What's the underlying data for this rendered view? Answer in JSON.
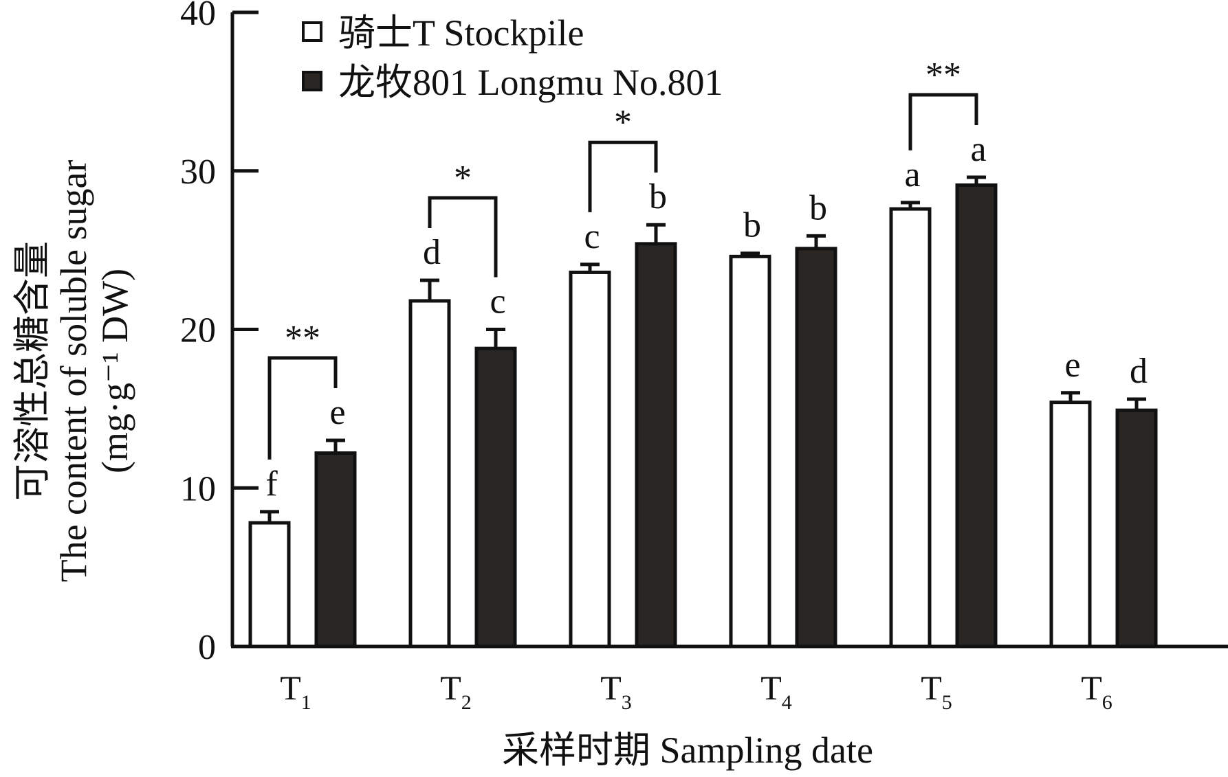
{
  "chart_data": {
    "type": "bar",
    "title": "",
    "xlabel": "采样时期 Sampling date",
    "ylabel_cn": "可溶性总糖含量",
    "ylabel_en": "The content of soluble sugar",
    "ylabel_unit": "(mg·g⁻¹ DW)",
    "ylim": [
      0,
      40
    ],
    "yticks": [
      0,
      10,
      20,
      30,
      40
    ],
    "categories": [
      {
        "main": "T",
        "sub": "1"
      },
      {
        "main": "T",
        "sub": "2"
      },
      {
        "main": "T",
        "sub": "3"
      },
      {
        "main": "T",
        "sub": "4"
      },
      {
        "main": "T",
        "sub": "5"
      },
      {
        "main": "T",
        "sub": "6"
      }
    ],
    "series": [
      {
        "name": "骑士T Stockpile",
        "color": "#ffffff",
        "values": [
          7.8,
          21.8,
          23.6,
          24.6,
          27.6,
          15.4
        ],
        "errors": [
          0.7,
          1.3,
          0.5,
          0.2,
          0.4,
          0.6
        ],
        "letters": [
          "f",
          "d",
          "c",
          "b",
          "a",
          "e"
        ]
      },
      {
        "name": "龙牧801 Longmu No.801",
        "color": "#2a2623",
        "values": [
          12.2,
          18.8,
          25.4,
          25.1,
          29.1,
          14.9
        ],
        "errors": [
          0.8,
          1.2,
          1.2,
          0.8,
          0.5,
          0.7
        ],
        "letters": [
          "e",
          "c",
          "b",
          "b",
          "a",
          "d"
        ]
      }
    ],
    "significance": [
      "**",
      "*",
      "*",
      "",
      "**",
      ""
    ],
    "legend_position": "top-left"
  }
}
